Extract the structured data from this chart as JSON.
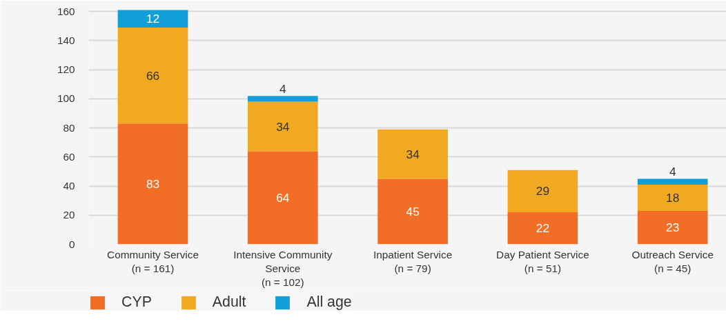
{
  "chart_data": {
    "type": "bar",
    "stacked": true,
    "categories": [
      "Community Service\n(n = 161)",
      "Intensive Community\nService\n(n = 102)",
      "Inpatient Service\n(n = 79)",
      "Day Patient Service\n(n = 51)",
      "Outreach Service\n(n = 45)"
    ],
    "series": [
      {
        "name": "CYP",
        "color": "#f26e26",
        "values": [
          83,
          64,
          45,
          22,
          23
        ]
      },
      {
        "name": "Adult",
        "color": "#f2a922",
        "values": [
          66,
          34,
          34,
          29,
          18
        ]
      },
      {
        "name": "All age",
        "color": "#129fd8",
        "values": [
          12,
          4,
          null,
          null,
          4
        ]
      }
    ],
    "ylim": [
      0,
      162
    ],
    "yticks": [
      0,
      20,
      40,
      60,
      80,
      100,
      120,
      140,
      160
    ],
    "grid": "y",
    "legend": "bottom left",
    "data_labels": true
  }
}
